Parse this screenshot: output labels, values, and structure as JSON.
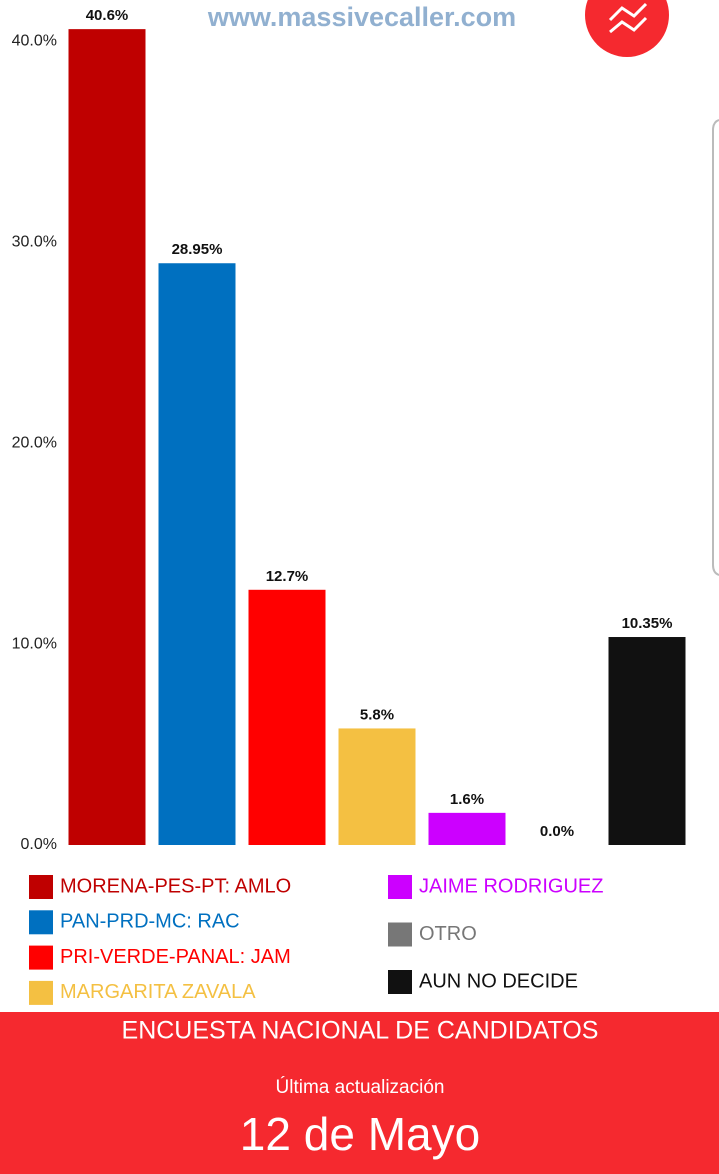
{
  "chart_data": {
    "type": "bar",
    "watermark": "www.massivecaller.com",
    "categories": [
      "MORENA-PES-PT: AMLO",
      "PAN-PRD-MC: RAC",
      "PRI-VERDE-PANAL: JAM",
      "MARGARITA ZAVALA",
      "JAIME RODRIGUEZ",
      "OTRO",
      "AUN NO DECIDE"
    ],
    "values": [
      40.6,
      28.95,
      12.7,
      5.8,
      1.6,
      0.0,
      10.35
    ],
    "value_labels": [
      "40.6%",
      "28.95%",
      "12.7%",
      "5.8%",
      "1.6%",
      "0.0%",
      "10.35%"
    ],
    "colors": [
      "#bf0000",
      "#0070c0",
      "#ff0000",
      "#f4c042",
      "#cc00ff",
      "#777777",
      "#111111"
    ],
    "ylim": [
      0,
      42
    ],
    "yticks": [
      {
        "value": 0,
        "label": "0.0%"
      },
      {
        "value": 10,
        "label": "10.0%"
      },
      {
        "value": 20,
        "label": "20.0%"
      },
      {
        "value": 30,
        "label": "30.0%"
      },
      {
        "value": 40,
        "label": "40.0%"
      }
    ],
    "grid": false,
    "title": "ENCUESTA NACIONAL DE CANDIDATOS",
    "update_label": "Última actualización",
    "update_date": "12 de Mayo"
  }
}
